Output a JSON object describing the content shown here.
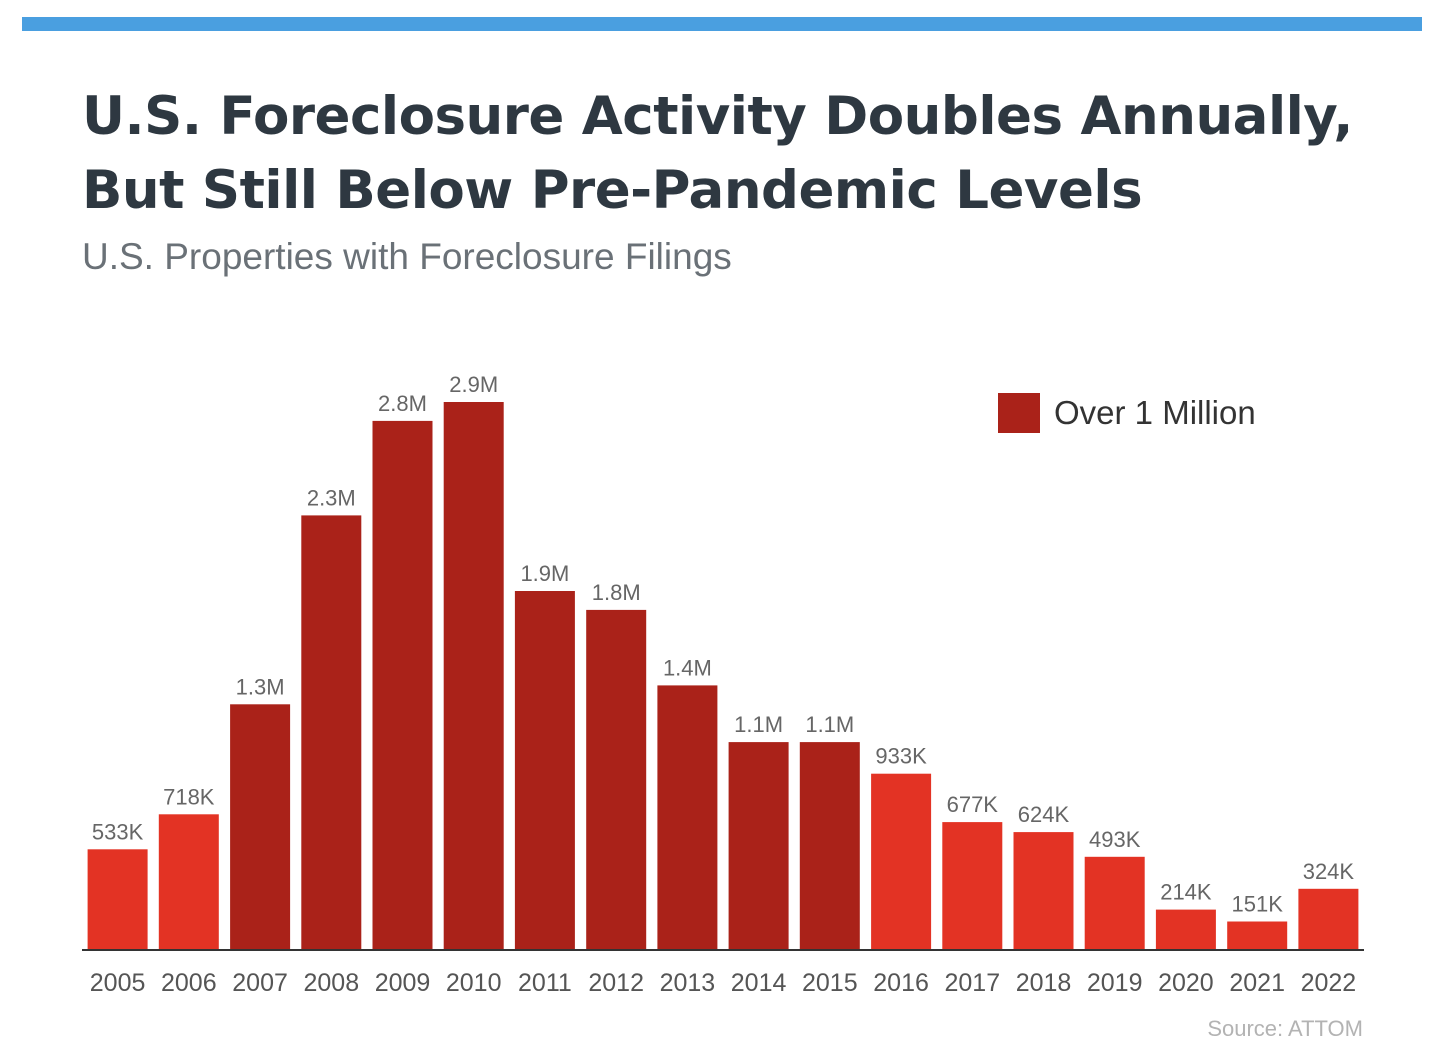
{
  "header": {
    "title_line1": "U.S. Foreclosure Activity Doubles Annually,",
    "title_line2": "But Still Below Pre-Pandemic Levels",
    "subtitle": "U.S. Properties with Foreclosure Filings"
  },
  "legend": {
    "label": "Over 1 Million",
    "color": "#aa2219"
  },
  "source": "Source: ATTOM",
  "colors": {
    "accent_bar": "#4a9fe0",
    "over_million": "#aa2219",
    "under_million": "#e33324",
    "axis": "#333333",
    "value_label": "#666666",
    "tick_label": "#555555"
  },
  "chart_data": {
    "type": "bar",
    "title": "U.S. Foreclosure Activity Doubles Annually, But Still Below Pre-Pandemic Levels",
    "subtitle": "U.S. Properties with Foreclosure Filings",
    "categories": [
      "2005",
      "2006",
      "2007",
      "2008",
      "2009",
      "2010",
      "2011",
      "2012",
      "2013",
      "2014",
      "2015",
      "2016",
      "2017",
      "2018",
      "2019",
      "2020",
      "2021",
      "2022"
    ],
    "values": [
      533000,
      718000,
      1300000,
      2300000,
      2800000,
      2900000,
      1900000,
      1800000,
      1400000,
      1100000,
      1100000,
      933000,
      677000,
      624000,
      493000,
      214000,
      151000,
      324000
    ],
    "data_labels": [
      "533K",
      "718K",
      "1.3M",
      "2.3M",
      "2.8M",
      "2.9M",
      "1.9M",
      "1.8M",
      "1.4M",
      "1.1M",
      "1.1M",
      "933K",
      "677K",
      "624K",
      "493K",
      "214K",
      "151K",
      "324K"
    ],
    "over_million": [
      false,
      false,
      true,
      true,
      true,
      true,
      true,
      true,
      true,
      true,
      true,
      false,
      false,
      false,
      false,
      false,
      false,
      false
    ],
    "ylim": [
      0,
      2900000
    ],
    "grid": false,
    "legend_position": "top-right",
    "xlabel": "",
    "ylabel": ""
  }
}
